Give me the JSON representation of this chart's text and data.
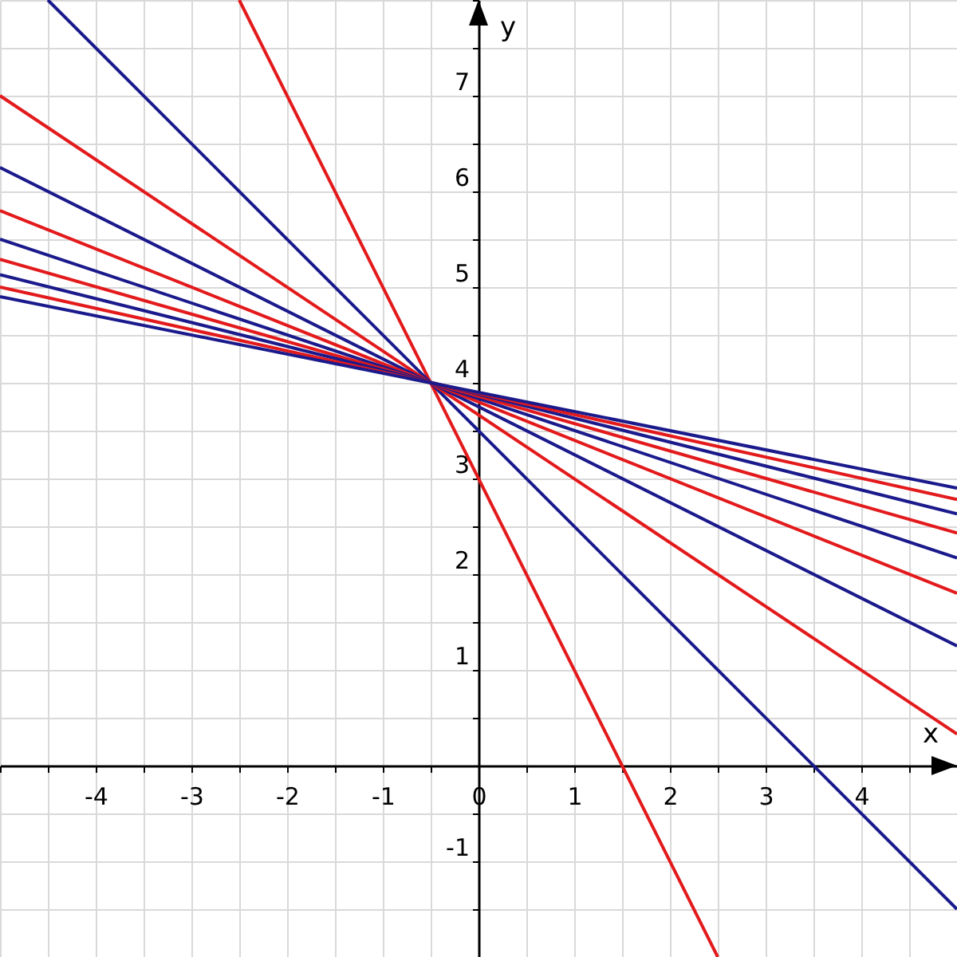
{
  "chart_data": {
    "type": "line",
    "xlabel": "x",
    "ylabel": "y",
    "xlim": [
      -5,
      5
    ],
    "ylim": [
      -2,
      8
    ],
    "xticks": [
      {
        "value": -5,
        "label": null
      },
      {
        "value": -4.5,
        "label": null
      },
      -4,
      {
        "value": -3.5,
        "label": null
      },
      -3,
      {
        "value": -2.5,
        "label": null
      },
      -2,
      {
        "value": -1.5,
        "label": null
      },
      -1,
      {
        "value": -0.5,
        "label": null
      },
      0,
      {
        "value": 0.5,
        "label": null
      },
      1,
      {
        "value": 1.5,
        "label": null
      },
      2,
      {
        "value": 2.5,
        "label": null
      },
      3,
      {
        "value": 3.5,
        "label": null
      },
      4,
      {
        "value": 4.5,
        "label": null
      },
      {
        "value": 5,
        "label": null
      }
    ],
    "yticks": [
      {
        "value": -2,
        "label": null
      },
      {
        "value": -1.5,
        "label": null
      },
      -1,
      {
        "value": -0.5,
        "label": null
      },
      {
        "value": 0,
        "label": null
      },
      {
        "value": 0.5,
        "label": null
      },
      1,
      {
        "value": 1.5,
        "label": null
      },
      2,
      {
        "value": 2.5,
        "label": null
      },
      3,
      {
        "value": 3.5,
        "label": null
      },
      4,
      {
        "value": 4.5,
        "label": null
      },
      5,
      {
        "value": 5.5,
        "label": null
      },
      6,
      {
        "value": 6.5,
        "label": null
      },
      7,
      {
        "value": 7.5,
        "label": null
      },
      {
        "value": 8,
        "label": null
      }
    ],
    "grid": true,
    "marker": "none",
    "line_style": "solid",
    "series": [
      {
        "color": "#e31a1c",
        "x": [
          -2.5,
          2.5
        ],
        "values": [
          8,
          -2
        ]
      },
      {
        "color": "#1a1a8c",
        "x": [
          -4.5,
          5
        ],
        "values": [
          8,
          -1.5
        ]
      },
      {
        "color": "#e31a1c",
        "x": [
          -5,
          5
        ],
        "values": [
          7,
          0.33
        ]
      },
      {
        "color": "#1a1a8c",
        "x": [
          -5,
          5
        ],
        "values": [
          6.25,
          1.25
        ]
      },
      {
        "color": "#e31a1c",
        "x": [
          -5,
          5
        ],
        "values": [
          5.8,
          1.8
        ]
      },
      {
        "color": "#1a1a8c",
        "x": [
          -5,
          5
        ],
        "values": [
          5.5,
          2.17
        ]
      },
      {
        "color": "#e31a1c",
        "x": [
          -5,
          5
        ],
        "values": [
          5.29,
          2.43
        ]
      },
      {
        "color": "#1a1a8c",
        "x": [
          -5,
          5
        ],
        "values": [
          5.13,
          2.63
        ]
      },
      {
        "color": "#e31a1c",
        "x": [
          -5,
          5
        ],
        "values": [
          5,
          2.78
        ]
      },
      {
        "color": "#1a1a8c",
        "x": [
          -5,
          5
        ],
        "values": [
          4.9,
          2.9
        ]
      }
    ]
  }
}
